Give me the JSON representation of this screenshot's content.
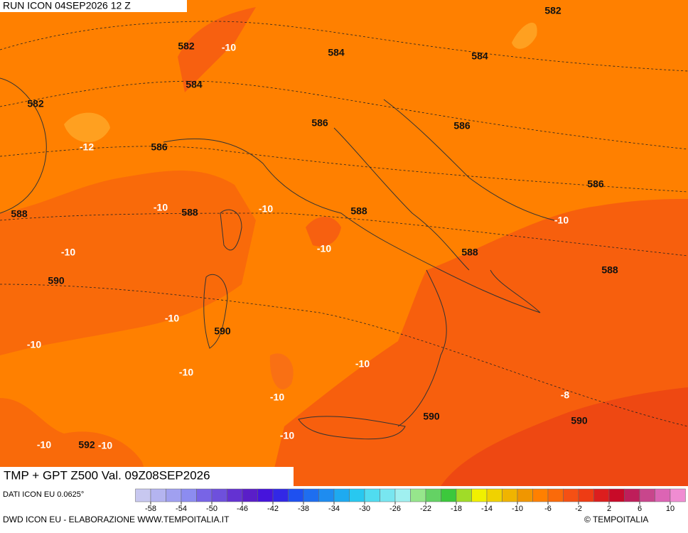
{
  "header": {
    "run": "RUN ICON 04SEP2026 12 Z"
  },
  "title": "TMP + GPT Z500 Val. 09Z08SEP2026",
  "map": {
    "labels": [
      "582",
      "582",
      "-10",
      "584",
      "584",
      "584",
      "582",
      "586",
      "586",
      "-12",
      "586",
      "586",
      "588",
      "-10",
      "588",
      "-10",
      "588",
      "-10",
      "-10",
      "588",
      "-10",
      "588",
      "590",
      "-10",
      "590",
      "-10",
      "-10",
      "-10",
      "-10",
      "-8",
      "590",
      "590",
      "-10",
      "-10",
      "592",
      "-10"
    ]
  },
  "legend": {
    "source": "DATI ICON EU 0.0625°",
    "ticks": [
      -58,
      -54,
      -50,
      -46,
      -42,
      -38,
      -34,
      -30,
      -26,
      -22,
      -18,
      -14,
      -10,
      -6,
      -2,
      2,
      6,
      10
    ]
  },
  "footer": {
    "credit": "DWD ICON EU - ELABORAZIONE WWW.TEMPOITALIA.IT",
    "brand": "© TEMPOITALIA"
  }
}
